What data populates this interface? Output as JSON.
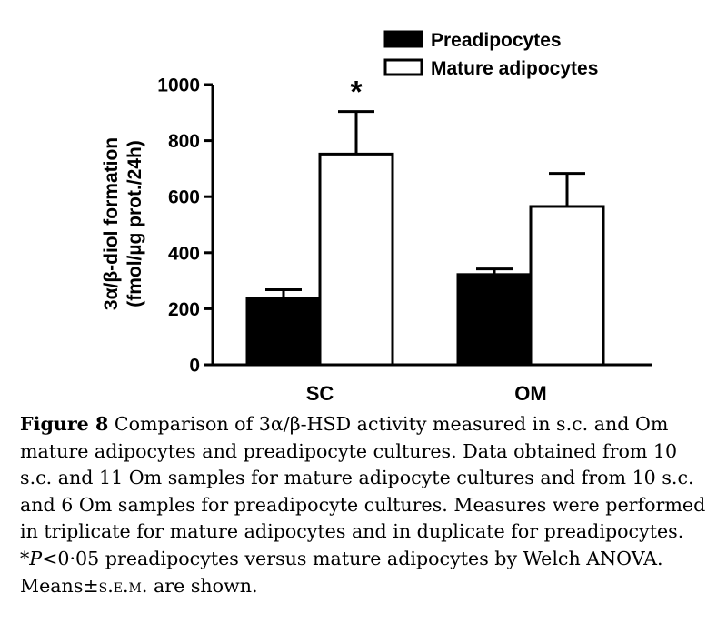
{
  "chart_data": {
    "type": "bar",
    "ylabel_line1": "3α/β-diol formation",
    "ylabel_line2": "(fmol/µg prot./24h)",
    "xlabel": "",
    "ylim": [
      0,
      1000
    ],
    "yticks": [
      0,
      200,
      400,
      600,
      800,
      1000
    ],
    "categories": [
      "SC",
      "OM"
    ],
    "legend_position": "top-right",
    "series": [
      {
        "name": "Preadipocytes",
        "fill": "#000000",
        "values": [
          238,
          322
        ],
        "errors": [
          30,
          20
        ]
      },
      {
        "name": "Mature adipocytes",
        "fill": "#ffffff",
        "values": [
          752,
          565
        ],
        "errors": [
          152,
          118
        ]
      }
    ],
    "annotations": [
      {
        "category": "SC",
        "text": "*"
      }
    ]
  },
  "caption": {
    "label": "Figure 8",
    "text_1": " Comparison of 3α/β-HSD activity measured in s.c. and Om mature adipocytes and preadipocyte cultures. Data obtained from 10 s.c. and 11 Om samples for mature adipocyte cultures and from 10 s.c. and 6 Om samples for preadipocyte cultures. Measures were performed in triplicate for mature adipocytes and in duplicate for preadipocytes. *",
    "p_symbol": "P",
    "text_2": "<0·05 preadipocytes versus mature adipocytes by Welch ANOVA. Means±",
    "sem": "s.e.m.",
    "text_3": " are shown."
  }
}
